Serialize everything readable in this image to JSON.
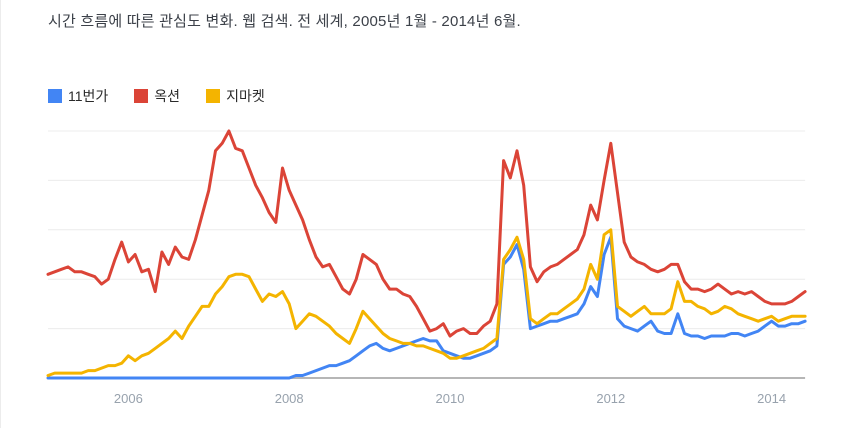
{
  "title": {
    "text": "시간 흐름에 따른 관심도 변화. 웹 검색. 전 세계, 2005년 1월 - 2014년 6월.",
    "color": "#3c4149"
  },
  "colors": {
    "background": "#ffffff",
    "gridline": "#ececec",
    "axis_line": "#b6b6b6",
    "axis_label": "#98a2ad",
    "legend_text": "#2a2a2a"
  },
  "chart_data": {
    "type": "line",
    "title": "시간 흐름에 따른 관심도 변화. 웹 검색. 전 세계, 2005년 1월 - 2014년 6월.",
    "x_start": "2005-01",
    "x_end": "2014-06",
    "x_interval": "monthly",
    "n_points": 114,
    "ylim": [
      0,
      100
    ],
    "y_gridlines": [
      20,
      40,
      60,
      80,
      100
    ],
    "grid": "horizontal-only",
    "y_axis_labels_visible": false,
    "legend_position": "top-left",
    "x_ticks": [
      {
        "label": "2006",
        "month_index": 12
      },
      {
        "label": "2008",
        "month_index": 36
      },
      {
        "label": "2010",
        "month_index": 60
      },
      {
        "label": "2012",
        "month_index": 84
      },
      {
        "label": "2014",
        "month_index": 108
      }
    ],
    "series": [
      {
        "name": "11번가",
        "color": "#4285f4",
        "values": [
          0,
          0,
          0,
          0,
          0,
          0,
          0,
          0,
          0,
          0,
          0,
          0,
          0,
          0,
          0,
          0,
          0,
          0,
          0,
          0,
          0,
          0,
          0,
          0,
          0,
          0,
          0,
          0,
          0,
          0,
          0,
          0,
          0,
          0,
          0,
          0,
          0,
          1,
          1,
          2,
          3,
          4,
          5,
          5,
          6,
          7,
          9,
          11,
          13,
          14,
          12,
          11,
          12,
          13,
          14,
          15,
          16,
          15,
          15,
          11,
          10,
          9,
          8,
          8,
          9,
          10,
          11,
          13,
          46,
          49,
          54,
          44,
          20,
          21,
          22,
          23,
          23,
          24,
          25,
          26,
          30,
          37,
          33,
          50,
          57,
          24,
          21,
          20,
          19,
          21,
          23,
          19,
          18,
          18,
          26,
          18,
          17,
          17,
          16,
          17,
          17,
          17,
          18,
          18,
          17,
          18,
          19,
          21,
          23,
          21,
          21,
          22,
          22,
          23
        ]
      },
      {
        "name": "옥션",
        "color": "#db4437",
        "values": [
          42,
          43,
          44,
          45,
          43,
          43,
          42,
          41,
          38,
          40,
          48,
          55,
          47,
          50,
          43,
          44,
          35,
          51,
          46,
          53,
          49,
          48,
          56,
          66,
          76,
          92,
          95,
          100,
          93,
          92,
          85,
          78,
          73,
          67,
          63,
          85,
          76,
          70,
          64,
          56,
          49,
          45,
          46,
          41,
          36,
          34,
          40,
          50,
          48,
          46,
          40,
          36,
          36,
          34,
          33,
          29,
          24,
          19,
          20,
          22,
          17,
          19,
          20,
          18,
          18,
          21,
          23,
          30,
          88,
          81,
          92,
          78,
          45,
          39,
          43,
          45,
          46,
          48,
          50,
          52,
          58,
          70,
          64,
          80,
          95,
          75,
          55,
          49,
          47,
          46,
          44,
          43,
          44,
          46,
          46,
          39,
          36,
          36,
          35,
          36,
          38,
          36,
          34,
          35,
          34,
          35,
          33,
          31,
          30,
          30,
          30,
          31,
          33,
          35
        ]
      },
      {
        "name": "지마켓",
        "color": "#f4b400",
        "values": [
          1,
          2,
          2,
          2,
          2,
          2,
          3,
          3,
          4,
          5,
          5,
          6,
          9,
          7,
          9,
          10,
          12,
          14,
          16,
          19,
          16,
          21,
          25,
          29,
          29,
          34,
          37,
          41,
          42,
          42,
          41,
          36,
          31,
          34,
          33,
          35,
          30,
          20,
          23,
          26,
          25,
          23,
          21,
          18,
          16,
          14,
          20,
          27,
          24,
          21,
          18,
          16,
          15,
          14,
          14,
          13,
          13,
          12,
          11,
          10,
          8,
          8,
          9,
          10,
          11,
          12,
          14,
          16,
          48,
          52,
          57,
          48,
          24,
          22,
          24,
          26,
          26,
          28,
          30,
          32,
          36,
          46,
          40,
          58,
          60,
          29,
          27,
          25,
          27,
          29,
          26,
          26,
          26,
          28,
          39,
          31,
          31,
          29,
          28,
          26,
          27,
          29,
          28,
          26,
          25,
          24,
          23,
          24,
          25,
          23,
          24,
          25,
          25,
          25
        ]
      }
    ]
  }
}
